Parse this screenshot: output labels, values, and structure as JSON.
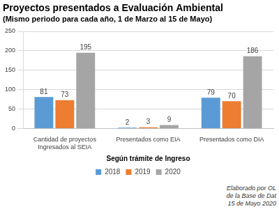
{
  "chart_data": {
    "type": "bar",
    "title": "Proyectos presentados a Evaluación Ambiental",
    "subtitle": "(Mismo periodo para cada año, 1 de Marzo al 15 de Mayo)",
    "x_label": "Según trámite de Ingreso",
    "categories": [
      "Cantidad de proyectos Ingresados al SEIA",
      "Presentados como EIA",
      "Presentados como DIA"
    ],
    "series": [
      {
        "name": "2018",
        "color": "#5B9BD5",
        "values": [
          81,
          2,
          79
        ]
      },
      {
        "name": "2019",
        "color": "#ED7D31",
        "values": [
          73,
          3,
          70
        ]
      },
      {
        "name": "2020",
        "color": "#A5A5A5",
        "values": [
          195,
          9,
          186
        ]
      }
    ],
    "ylim": [
      0,
      250
    ],
    "yticks": [
      0,
      50,
      100,
      150,
      200,
      250
    ],
    "grid": true,
    "legend": "bottom",
    "data_labels": true,
    "annotations": [
      "Elaborado por OL",
      "de la Base de Dat",
      "15 de Mayo 2020"
    ]
  }
}
